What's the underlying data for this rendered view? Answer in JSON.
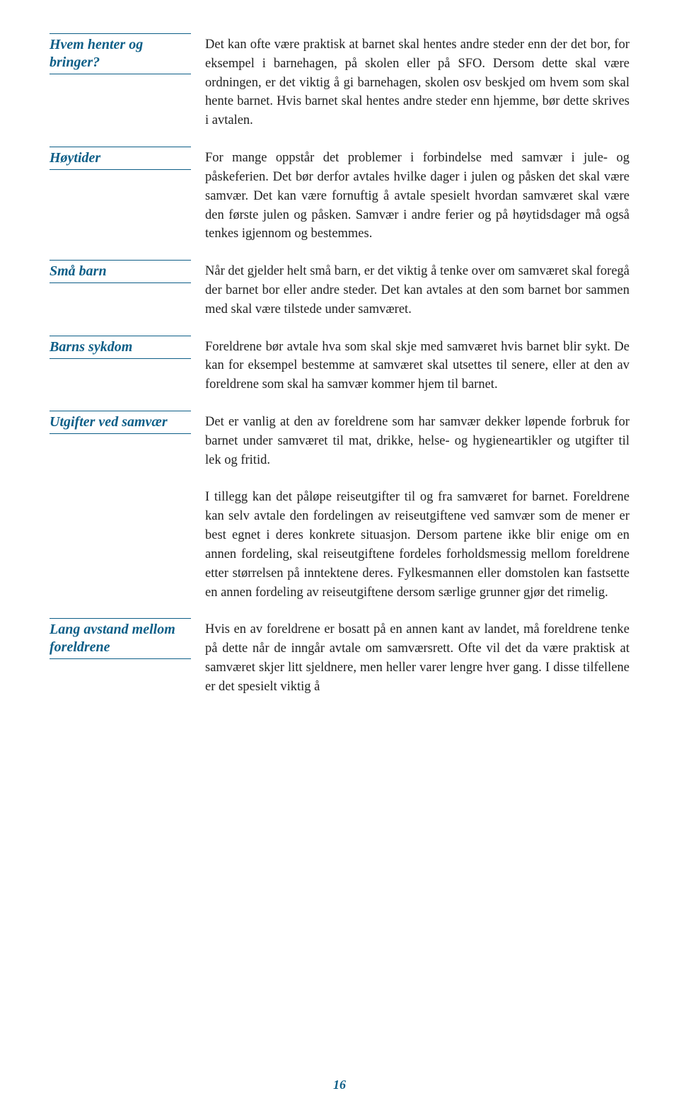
{
  "colors": {
    "accent": "#0d5e87",
    "text": "#222222",
    "background": "#ffffff"
  },
  "typography": {
    "heading_font": "Palatino Linotype, italic bold",
    "heading_size_pt": 15,
    "body_font": "serif (Times/Century Schoolbook style)",
    "body_size_pt": 14
  },
  "page_number": "16",
  "sections": [
    {
      "heading": "Hvem henter og bringer?",
      "heading_offset": 0,
      "paragraphs": [
        "Det kan ofte være praktisk at barnet skal hentes andre steder enn der det bor, for eksempel i barnehagen, på skolen eller på SFO. Dersom dette skal være ordningen, er det viktig å gi barnehagen, skolen osv beskjed om hvem som skal hente barnet. Hvis barnet skal hentes andre steder enn hjemme, bør dette skrives i avtalen."
      ]
    },
    {
      "heading": "Høytider",
      "heading_offset": 0,
      "paragraphs": [
        "For mange oppstår det problemer i forbindelse med samvær i jule- og påskeferien. Det bør derfor avtales hvilke dager i julen og påsken det skal være samvær. Det kan være fornuftig å avtale spesielt hvordan samværet skal være den første julen og påsken. Samvær i andre ferier og på høytidsdager må også tenkes igjennom og bestemmes."
      ]
    },
    {
      "heading": "Små barn",
      "heading_offset": 0,
      "paragraphs": [
        "Når det gjelder helt små barn, er det viktig å tenke over om samværet skal foregå der barnet bor eller andre steder. Det kan avtales at den som barnet bor sammen med skal være tilstede under samværet."
      ]
    },
    {
      "heading": "Barns sykdom",
      "heading_offset": 0,
      "paragraphs": [
        "Foreldrene bør avtale hva som skal skje med samværet hvis barnet blir sykt. De kan for eksempel bestemme at samværet skal utsettes til senere, eller at den av foreldrene som skal ha samvær kommer hjem til barnet."
      ]
    },
    {
      "heading": "Utgifter ved samvær",
      "heading_offset": 0,
      "paragraphs": [
        "Det er vanlig at den av foreldrene som har samvær dekker løpende forbruk for barnet under samværet til mat, drikke, helse- og hygieneartikler og utgifter til lek og fritid.",
        "I tillegg kan det påløpe reiseutgifter til og fra samværet for barnet. Foreldrene kan selv avtale den fordelingen av reiseutgiftene ved samvær som de mener er best egnet i deres konkrete situasjon. Dersom partene ikke blir enige om en annen fordeling, skal reiseutgiftene fordeles forholdsmessig mellom foreldrene etter størrelsen på inntektene deres. Fylkesmannen eller domstolen kan fastsette en annen fordeling av reiseutgiftene dersom særlige grunner gjør det rimelig."
      ]
    },
    {
      "heading": "Lang avstand mellom foreldrene",
      "heading_offset": 0,
      "paragraphs": [
        "Hvis en av foreldrene er bosatt på en annen kant av landet, må foreldrene tenke på dette når de inngår avtale om samværsrett. Ofte vil det da være praktisk at samværet skjer litt sjeldnere, men heller varer lengre hver gang. I disse tilfellene er det spesielt viktig å"
      ]
    }
  ]
}
